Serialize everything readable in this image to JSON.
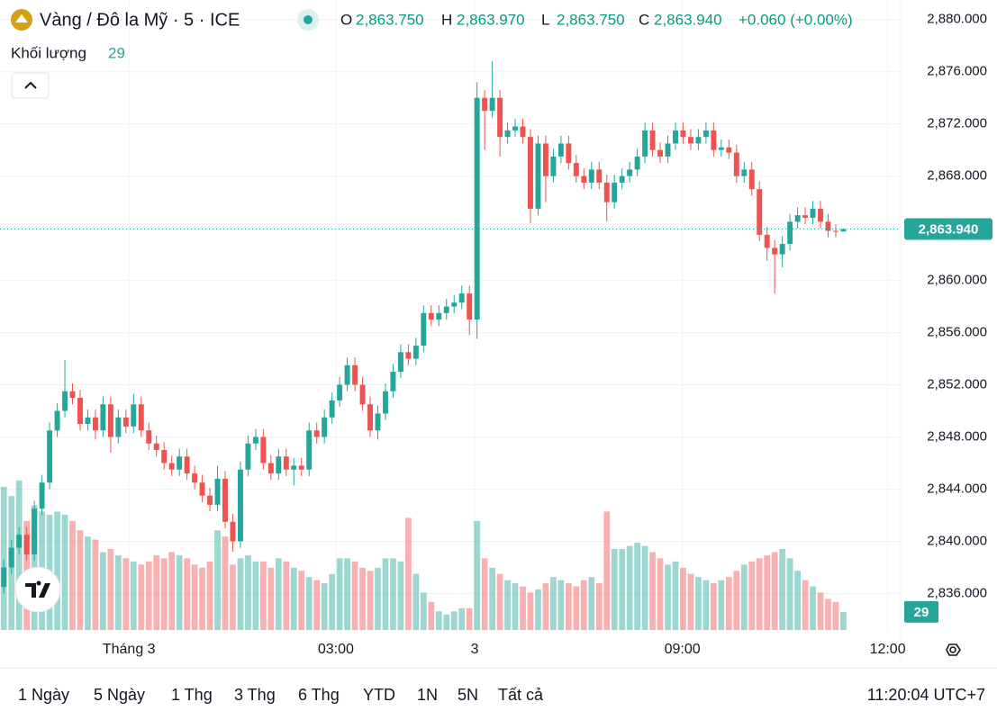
{
  "chart_data": {
    "type": "candlestick",
    "title": "Vàng / Đô la Mỹ · 5 · ICE",
    "ohlc_legend": [
      {
        "key": "O",
        "value": "2,863.750"
      },
      {
        "key": "H",
        "value": "2,863.970"
      },
      {
        "key": "L",
        "value": "2,863.750"
      },
      {
        "key": "C",
        "value": "2,863.940"
      }
    ],
    "change": "+0.060 (+0.00%)",
    "volume_title": "Khối lượng",
    "volume_legend": "29",
    "up_color": "#26a69a",
    "down_color": "#ef5350",
    "ylim": [
      2833.2,
      2881.5
    ],
    "yticks": [
      {
        "value": 2836,
        "label": "2,836.000"
      },
      {
        "value": 2840,
        "label": "2,840.000"
      },
      {
        "value": 2844,
        "label": "2,844.000"
      },
      {
        "value": 2848,
        "label": "2,848.000"
      },
      {
        "value": 2852,
        "label": "2,852.000"
      },
      {
        "value": 2856,
        "label": "2,856.000"
      },
      {
        "value": 2860,
        "label": "2,860.000"
      },
      {
        "value": 2864,
        "label": "2,864.000"
      },
      {
        "value": 2868,
        "label": "2,868.000"
      },
      {
        "value": 2872,
        "label": "2,872.000"
      },
      {
        "value": 2876,
        "label": "2,876.000"
      },
      {
        "value": 2880,
        "label": "2,880.000"
      }
    ],
    "xlim": [
      -0.5,
      117.5
    ],
    "xticks": [
      {
        "value": 16.4,
        "label": "Tháng 3"
      },
      {
        "value": 43.5,
        "label": "03:00"
      },
      {
        "value": 61.7,
        "label": "3"
      },
      {
        "value": 88.9,
        "label": "09:00"
      },
      {
        "value": 115.8,
        "label": "12:00"
      }
    ],
    "grid": true,
    "last_price": {
      "value": 2863.94,
      "label": "2,863.940"
    },
    "volume_lim": [
      0,
      260
    ],
    "open": [
      2836.5,
      2838.0,
      2839.5,
      2840.5,
      2839.0,
      2842.5,
      2844.5,
      2848.5,
      2850.0,
      2851.5,
      2851.0,
      2849.0,
      2849.5,
      2848.5,
      2850.5,
      2848.0,
      2849.5,
      2848.8,
      2850.5,
      2848.5,
      2847.5,
      2847.0,
      2846.0,
      2845.5,
      2846.5,
      2845.2,
      2844.5,
      2843.5,
      2842.8,
      2844.8,
      2841.5,
      2840.0,
      2845.5,
      2847.5,
      2848.0,
      2846.0,
      2845.2,
      2846.5,
      2845.5,
      2845.8,
      2845.5,
      2848.5,
      2848.0,
      2849.5,
      2850.8,
      2852.0,
      2853.5,
      2852.0,
      2850.5,
      2848.5,
      2849.8,
      2851.5,
      2853.0,
      2854.5,
      2854.0,
      2855.0,
      2857.5,
      2857.0,
      2857.5,
      2858.0,
      2858.3,
      2859.0,
      2857.0,
      2874.0,
      2873.0,
      2874.0,
      2871.0,
      2871.5,
      2871.8,
      2871.0,
      2865.5,
      2870.5,
      2868.0,
      2869.5,
      2870.5,
      2869.0,
      2868.0,
      2867.5,
      2868.5,
      2867.5,
      2866.0,
      2867.5,
      2868.0,
      2868.5,
      2869.5,
      2871.5,
      2870.0,
      2869.5,
      2870.5,
      2871.5,
      2871.0,
      2870.5,
      2871.0,
      2871.5,
      2870.0,
      2870.2,
      2869.8,
      2868.0,
      2868.5,
      2867.0,
      2863.5,
      2862.5,
      2862.0,
      2862.8,
      2864.5,
      2865.0,
      2864.8,
      2865.5,
      2864.5,
      2863.8,
      2863.75
    ],
    "high": [
      2838.6,
      2840.1,
      2841.1,
      2841.1,
      2843.1,
      2845.1,
      2849.1,
      2850.6,
      2853.9,
      2852.1,
      2851.6,
      2850.1,
      2850.1,
      2851.1,
      2851.1,
      2850.1,
      2850.1,
      2851.3,
      2851.1,
      2849.1,
      2848.1,
      2847.6,
      2846.6,
      2847.1,
      2847.1,
      2845.8,
      2845.1,
      2844.1,
      2845.8,
      2845.4,
      2842.1,
      2846.1,
      2848.1,
      2848.6,
      2848.6,
      2846.6,
      2847.1,
      2847.1,
      2846.4,
      2846.4,
      2849.1,
      2849.1,
      2850.1,
      2851.4,
      2852.6,
      2854.1,
      2854.1,
      2852.6,
      2851.1,
      2850.4,
      2852.1,
      2853.6,
      2855.1,
      2855.1,
      2855.6,
      2858.1,
      2858.1,
      2858.1,
      2858.6,
      2858.9,
      2859.6,
      2859.6,
      2875.2,
      2874.6,
      2876.8,
      2874.6,
      2872.1,
      2872.4,
      2872.4,
      2871.6,
      2871.1,
      2871.1,
      2870.1,
      2871.1,
      2871.1,
      2869.6,
      2868.6,
      2869.1,
      2869.1,
      2868.1,
      2868.1,
      2868.6,
      2869.1,
      2870.1,
      2872.1,
      2872.1,
      2870.6,
      2871.1,
      2872.1,
      2872.1,
      2871.6,
      2871.6,
      2872.1,
      2872.1,
      2870.8,
      2870.8,
      2870.4,
      2869.1,
      2869.1,
      2867.6,
      2864.1,
      2863.1,
      2863.4,
      2865.1,
      2865.6,
      2865.6,
      2866.1,
      2866.1,
      2865.1,
      2864.3,
      2863.97
    ],
    "low": [
      2836.0,
      2837.5,
      2839.0,
      2838.5,
      2838.5,
      2842.0,
      2844.0,
      2848.0,
      2849.5,
      2850.5,
      2848.5,
      2848.5,
      2847.8,
      2848.0,
      2846.8,
      2847.5,
      2848.3,
      2848.3,
      2848.0,
      2847.0,
      2846.5,
      2845.5,
      2845.0,
      2845.0,
      2844.7,
      2844.0,
      2843.0,
      2842.3,
      2842.3,
      2841.0,
      2839.2,
      2839.5,
      2845.0,
      2847.0,
      2845.5,
      2844.7,
      2844.7,
      2845.0,
      2844.3,
      2845.0,
      2845.0,
      2847.5,
      2847.5,
      2849.0,
      2850.3,
      2851.5,
      2851.5,
      2850.0,
      2848.0,
      2847.8,
      2849.3,
      2851.0,
      2852.5,
      2853.5,
      2853.5,
      2854.5,
      2856.5,
      2856.5,
      2857.0,
      2857.5,
      2857.8,
      2855.8,
      2855.5,
      2870.0,
      2872.5,
      2869.5,
      2870.5,
      2871.0,
      2870.5,
      2864.4,
      2865.0,
      2866.0,
      2867.5,
      2869.0,
      2868.5,
      2867.5,
      2867.0,
      2867.0,
      2867.0,
      2864.5,
      2865.5,
      2867.0,
      2867.5,
      2868.0,
      2869.0,
      2869.5,
      2869.0,
      2869.0,
      2870.0,
      2870.5,
      2870.0,
      2870.0,
      2870.5,
      2869.5,
      2869.5,
      2869.3,
      2867.5,
      2867.5,
      2866.5,
      2863.0,
      2861.5,
      2859.0,
      2861.0,
      2862.3,
      2864.0,
      2864.3,
      2864.3,
      2864.0,
      2863.3,
      2863.3,
      2863.75
    ],
    "close": [
      2838.0,
      2839.5,
      2840.5,
      2839.0,
      2842.5,
      2844.5,
      2848.5,
      2850.0,
      2851.5,
      2851.0,
      2849.0,
      2849.5,
      2848.5,
      2850.5,
      2848.0,
      2849.5,
      2848.8,
      2850.5,
      2848.5,
      2847.5,
      2847.0,
      2846.0,
      2845.5,
      2846.5,
      2845.2,
      2844.5,
      2843.5,
      2842.8,
      2844.8,
      2841.5,
      2840.0,
      2845.5,
      2847.5,
      2848.0,
      2846.0,
      2845.2,
      2846.5,
      2845.5,
      2845.8,
      2845.5,
      2848.5,
      2848.0,
      2849.5,
      2850.8,
      2852.0,
      2853.5,
      2852.0,
      2850.5,
      2848.5,
      2849.8,
      2851.5,
      2853.0,
      2854.5,
      2854.0,
      2855.0,
      2857.5,
      2857.0,
      2857.5,
      2858.0,
      2858.3,
      2859.0,
      2857.0,
      2874.0,
      2873.0,
      2874.0,
      2871.0,
      2871.5,
      2871.8,
      2871.0,
      2865.5,
      2870.5,
      2868.0,
      2869.5,
      2870.5,
      2869.0,
      2868.0,
      2867.5,
      2868.5,
      2867.5,
      2866.0,
      2867.5,
      2868.0,
      2868.5,
      2869.5,
      2871.5,
      2870.0,
      2869.5,
      2870.5,
      2871.5,
      2871.0,
      2870.5,
      2871.0,
      2871.5,
      2870.0,
      2870.2,
      2869.8,
      2868.0,
      2868.5,
      2867.0,
      2863.5,
      2862.5,
      2862.0,
      2862.8,
      2864.5,
      2865.0,
      2864.8,
      2865.5,
      2864.5,
      2863.8,
      2863.75,
      2863.94
    ],
    "volume": [
      230,
      215,
      240,
      175,
      200,
      190,
      185,
      190,
      185,
      175,
      160,
      150,
      145,
      125,
      130,
      120,
      115,
      110,
      105,
      110,
      120,
      115,
      125,
      120,
      115,
      105,
      100,
      110,
      160,
      150,
      105,
      115,
      120,
      110,
      110,
      100,
      115,
      110,
      100,
      95,
      85,
      80,
      75,
      90,
      115,
      115,
      110,
      100,
      95,
      100,
      115,
      115,
      110,
      180,
      90,
      60,
      45,
      30,
      25,
      30,
      35,
      35,
      175,
      115,
      100,
      90,
      80,
      75,
      70,
      60,
      65,
      75,
      85,
      80,
      75,
      70,
      80,
      85,
      75,
      190,
      130,
      130,
      135,
      140,
      135,
      125,
      115,
      105,
      110,
      100,
      90,
      85,
      80,
      75,
      80,
      85,
      95,
      105,
      110,
      115,
      120,
      125,
      130,
      115,
      95,
      80,
      70,
      60,
      50,
      45,
      29
    ]
  },
  "toolbar": {
    "ranges": [
      "1 Ngày",
      "5 Ngày",
      "1 Thg",
      "3 Thg",
      "6 Thg",
      "YTD",
      "1N",
      "5N",
      "Tất cả"
    ],
    "clock": "11:20:04 UTC+7"
  }
}
